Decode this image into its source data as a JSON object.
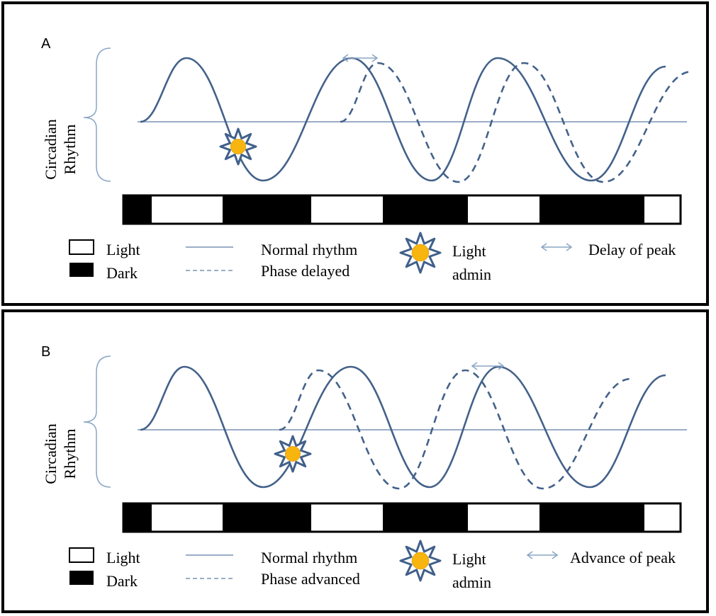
{
  "colors": {
    "curve": "#43618a",
    "baseline": "#7893b3",
    "arrow": "#8aa6c4",
    "sun_fill": "#f8b50f",
    "sun_ray": "#41608a",
    "bar_dark": "#000000",
    "bar_light": "#ffffff"
  },
  "light_dark_bar": {
    "segments": [
      "dark",
      "light",
      "dark",
      "light",
      "dark",
      "light",
      "dark",
      "light"
    ]
  },
  "panels": [
    {
      "label": "A",
      "y_axis_label_line1": "Circadian",
      "y_axis_label_line2": "Rhythm",
      "shift_type": "delay",
      "legend": {
        "light": "Light",
        "dark": "Dark",
        "normal_rhythm": "Normal rhythm",
        "shifted_rhythm": "Phase delayed",
        "light_admin_line1": "Light",
        "light_admin_line2": "admin",
        "peak_shift": "Delay of peak"
      },
      "icons": {
        "sun": "sun-icon",
        "arrow": "double-arrow-icon"
      }
    },
    {
      "label": "B",
      "y_axis_label_line1": "Circadian",
      "y_axis_label_line2": "Rhythm",
      "shift_type": "advance",
      "legend": {
        "light": "Light",
        "dark": "Dark",
        "normal_rhythm": "Normal rhythm",
        "shifted_rhythm": "Phase advanced",
        "light_admin_line1": "Light",
        "light_admin_line2": "admin",
        "peak_shift": "Advance of peak"
      },
      "icons": {
        "sun": "sun-icon",
        "arrow": "double-arrow-icon"
      }
    }
  ]
}
